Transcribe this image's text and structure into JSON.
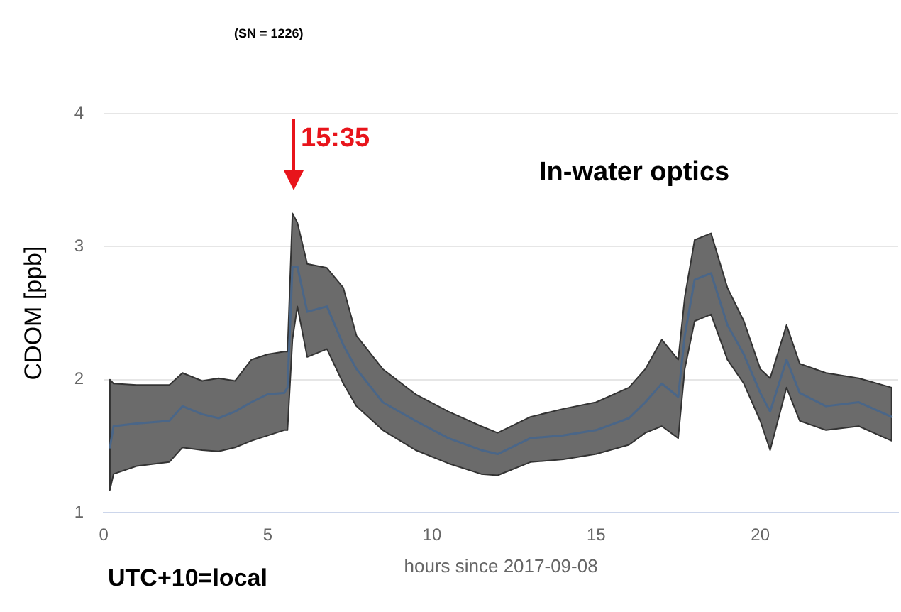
{
  "chart_data": {
    "type": "line",
    "xlabel": "hours since 2017-09-08",
    "ylabel": "CDOM [ppb]",
    "annotations": [
      "(SN = 1226)",
      "In-water optics",
      "15:35",
      "UTC+10=local"
    ],
    "x": [
      0.19,
      0.3,
      1,
      2,
      2.4,
      3,
      3.5,
      4,
      4.5,
      5,
      5.5,
      5.6,
      5.75,
      5.9,
      6.2,
      6.8,
      7.3,
      7.7,
      8.5,
      9.5,
      10.5,
      11.5,
      12,
      13,
      14,
      15,
      16,
      16.5,
      17,
      17.5,
      17.7,
      18,
      18.5,
      19,
      19.5,
      20,
      20.3,
      20.8,
      21.2,
      22,
      23,
      24
    ],
    "series": [
      {
        "color": "#4a6688",
        "line_style": "solid",
        "marker": "none",
        "values": [
          1.49,
          1.65,
          1.67,
          1.69,
          1.8,
          1.74,
          1.71,
          1.76,
          1.83,
          1.89,
          1.9,
          1.94,
          2.85,
          2.85,
          2.51,
          2.55,
          2.26,
          2.08,
          1.83,
          1.69,
          1.56,
          1.47,
          1.44,
          1.56,
          1.58,
          1.62,
          1.71,
          1.83,
          1.97,
          1.87,
          2.33,
          2.75,
          2.8,
          2.41,
          2.19,
          1.9,
          1.76,
          2.15,
          1.9,
          1.8,
          1.83,
          1.72
        ],
        "upper": [
          2.0,
          1.97,
          1.96,
          1.96,
          2.05,
          1.99,
          2.01,
          1.99,
          2.15,
          2.19,
          2.21,
          2.21,
          3.25,
          3.18,
          2.87,
          2.84,
          2.69,
          2.33,
          2.08,
          1.89,
          1.76,
          1.65,
          1.6,
          1.72,
          1.78,
          1.83,
          1.94,
          2.08,
          2.3,
          2.15,
          2.62,
          3.05,
          3.1,
          2.69,
          2.44,
          2.08,
          2.01,
          2.41,
          2.12,
          2.05,
          2.01,
          1.94
        ],
        "lower": [
          1.17,
          1.29,
          1.35,
          1.38,
          1.49,
          1.47,
          1.46,
          1.49,
          1.54,
          1.58,
          1.62,
          1.62,
          2.3,
          2.55,
          2.17,
          2.23,
          1.97,
          1.8,
          1.62,
          1.47,
          1.37,
          1.29,
          1.28,
          1.38,
          1.4,
          1.44,
          1.51,
          1.6,
          1.65,
          1.56,
          2.08,
          2.44,
          2.49,
          2.15,
          1.97,
          1.69,
          1.47,
          1.94,
          1.69,
          1.62,
          1.65,
          1.54
        ]
      }
    ],
    "xlim": [
      0,
      24.2
    ],
    "xticks": [
      0,
      5,
      10,
      15,
      20
    ],
    "ylim": [
      1,
      4
    ],
    "yticks": [
      1,
      2,
      3,
      4
    ],
    "grid": "y",
    "legend": false
  }
}
